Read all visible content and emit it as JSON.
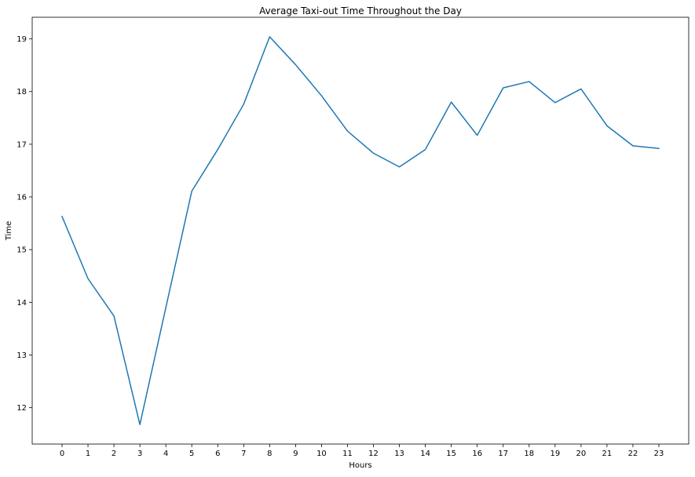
{
  "chart_data": {
    "type": "line",
    "title": "Average Taxi-out Time Throughout the Day",
    "xlabel": "Hours",
    "ylabel": "Time",
    "x": [
      0,
      1,
      2,
      3,
      4,
      5,
      6,
      7,
      8,
      9,
      10,
      11,
      12,
      13,
      14,
      15,
      16,
      17,
      18,
      19,
      20,
      21,
      22,
      23
    ],
    "series": [
      {
        "name": "",
        "values": [
          15.63,
          14.45,
          13.74,
          11.68,
          13.9,
          16.11,
          16.9,
          17.76,
          19.04,
          18.51,
          17.92,
          17.25,
          16.83,
          16.57,
          16.9,
          17.8,
          17.17,
          18.07,
          18.19,
          17.79,
          18.05,
          17.35,
          16.97,
          16.92
        ],
        "color": "#1f77b4"
      }
    ],
    "xticks": [
      "0",
      "1",
      "2",
      "3",
      "4",
      "5",
      "6",
      "7",
      "8",
      "9",
      "10",
      "11",
      "12",
      "13",
      "14",
      "15",
      "16",
      "17",
      "18",
      "19",
      "20",
      "21",
      "22",
      "23"
    ],
    "yticks": [
      "12",
      "13",
      "14",
      "15",
      "16",
      "17",
      "18",
      "19"
    ],
    "xlim": [
      -1.15,
      24.15
    ],
    "ylim": [
      11.31,
      19.41
    ],
    "grid": false,
    "legend": "none"
  }
}
